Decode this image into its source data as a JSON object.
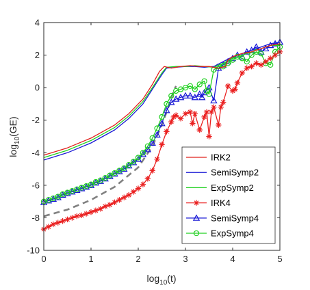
{
  "chart_data": {
    "type": "line",
    "xlabel": "log10(t)",
    "ylabel": "log10(GE)",
    "xlim": [
      0,
      5
    ],
    "ylim": [
      -10,
      4
    ],
    "xticks": [
      0,
      1,
      2,
      3,
      4,
      5
    ],
    "yticks": [
      -10,
      -8,
      -6,
      -4,
      -2,
      0,
      2,
      4
    ],
    "x_tick_labels": [
      "0",
      "1",
      "2",
      "3",
      "4",
      "5"
    ],
    "y_tick_labels": [
      "-10",
      "-8",
      "-6",
      "-4",
      "-2",
      "0",
      "2",
      "4"
    ],
    "axis_label_main": {
      "x": "log",
      "y": "log"
    },
    "axis_label_sub": {
      "x": "10",
      "y": "10"
    },
    "axis_label_arg": {
      "x": "(t)",
      "y": "(GE)"
    },
    "legend_position": "bottom-right",
    "grid": false,
    "series": [
      {
        "name": "IRK2",
        "color": "#e0201b",
        "marker": "none",
        "x": [
          0,
          0.5,
          1.0,
          1.5,
          1.8,
          2.1,
          2.3,
          2.45,
          2.55,
          2.7,
          2.9,
          3.1,
          3.3,
          3.5,
          3.7,
          3.85,
          3.9,
          4.0,
          4.2,
          4.4,
          4.6,
          4.8,
          5.0
        ],
        "y": [
          -4.15,
          -3.7,
          -3.1,
          -2.3,
          -1.6,
          -0.7,
          0.2,
          1.0,
          1.3,
          1.2,
          1.3,
          1.35,
          1.3,
          1.3,
          1.2,
          1.3,
          1.7,
          1.9,
          2.1,
          2.2,
          2.4,
          2.6,
          2.7
        ]
      },
      {
        "name": "SemiSymp2",
        "color": "#1a1ad6",
        "marker": "none",
        "x": [
          0,
          0.5,
          1.0,
          1.5,
          1.8,
          2.1,
          2.3,
          2.5,
          2.6,
          2.8,
          3.0,
          3.2,
          3.4,
          3.6,
          3.8,
          4.0,
          4.2,
          4.4,
          4.6,
          4.8,
          5.0
        ],
        "y": [
          -4.45,
          -4.0,
          -3.4,
          -2.6,
          -1.9,
          -1.0,
          -0.1,
          0.8,
          1.2,
          1.25,
          1.3,
          1.3,
          1.25,
          1.3,
          1.6,
          1.9,
          2.1,
          2.3,
          2.5,
          2.7,
          2.8
        ]
      },
      {
        "name": "ExpSymp2",
        "color": "#20d020",
        "marker": "none",
        "x": [
          0,
          0.5,
          1.0,
          1.5,
          1.8,
          2.1,
          2.3,
          2.5,
          2.6,
          2.8,
          3.0,
          3.2,
          3.4,
          3.6,
          3.8,
          4.0,
          4.2,
          4.4,
          4.6,
          4.8,
          5.0
        ],
        "y": [
          -4.3,
          -3.85,
          -3.25,
          -2.45,
          -1.75,
          -0.85,
          0.0,
          0.9,
          1.25,
          1.3,
          1.3,
          1.35,
          1.3,
          1.25,
          1.5,
          1.8,
          2.0,
          2.2,
          2.4,
          2.6,
          2.6
        ]
      },
      {
        "name": "IRK4",
        "color": "#ea2020",
        "marker": "star",
        "x": [
          0,
          0.1,
          0.2,
          0.3,
          0.4,
          0.5,
          0.6,
          0.7,
          0.8,
          0.9,
          1.0,
          1.1,
          1.2,
          1.3,
          1.4,
          1.5,
          1.6,
          1.7,
          1.8,
          1.9,
          2.0,
          2.1,
          2.2,
          2.3,
          2.4,
          2.5,
          2.6,
          2.7,
          2.75,
          2.8,
          2.9,
          3.0,
          3.1,
          3.15,
          3.2,
          3.3,
          3.4,
          3.45,
          3.5,
          3.55,
          3.6,
          3.7,
          3.75,
          3.8,
          3.9,
          4.0,
          4.05,
          4.1,
          4.2,
          4.3,
          4.4,
          4.5,
          4.6,
          4.7,
          4.8,
          4.9,
          5.0
        ],
        "y": [
          -8.7,
          -8.55,
          -8.4,
          -8.3,
          -8.2,
          -8.1,
          -8.0,
          -7.9,
          -7.85,
          -7.75,
          -7.65,
          -7.55,
          -7.45,
          -7.3,
          -7.2,
          -7.05,
          -6.9,
          -6.75,
          -6.6,
          -6.4,
          -6.2,
          -5.95,
          -5.6,
          -5.1,
          -4.4,
          -3.5,
          -2.7,
          -2.1,
          -1.8,
          -1.7,
          -1.9,
          -1.6,
          -1.5,
          -2.2,
          -1.6,
          -2.6,
          -1.8,
          -1.5,
          -3.0,
          -1.5,
          -1.2,
          -2.3,
          -1.2,
          -0.9,
          0.1,
          -0.2,
          -0.1,
          0.3,
          0.9,
          1.2,
          1.3,
          1.5,
          1.4,
          1.6,
          1.8,
          2.0,
          2.2
        ]
      },
      {
        "name": "SemiSymp4",
        "color": "#1a1ad6",
        "marker": "triangle",
        "x": [
          0,
          0.1,
          0.2,
          0.3,
          0.4,
          0.5,
          0.6,
          0.7,
          0.8,
          0.9,
          1.0,
          1.1,
          1.2,
          1.3,
          1.4,
          1.5,
          1.6,
          1.7,
          1.8,
          1.9,
          2.0,
          2.1,
          2.2,
          2.3,
          2.4,
          2.5,
          2.6,
          2.7,
          2.8,
          2.9,
          3.0,
          3.1,
          3.2,
          3.3,
          3.35,
          3.4,
          3.5,
          3.6,
          3.7,
          3.8,
          3.9,
          4.0,
          4.1,
          4.2,
          4.3,
          4.4,
          4.5,
          4.6,
          4.7,
          4.8,
          4.9,
          5.0
        ],
        "y": [
          -7.05,
          -6.95,
          -6.85,
          -6.75,
          -6.6,
          -6.5,
          -6.4,
          -6.3,
          -6.2,
          -6.1,
          -6.0,
          -5.85,
          -5.75,
          -5.6,
          -5.45,
          -5.3,
          -5.15,
          -5.0,
          -4.8,
          -4.6,
          -4.4,
          -4.1,
          -3.8,
          -3.4,
          -2.9,
          -2.2,
          -1.4,
          -0.9,
          -0.7,
          -0.6,
          -0.5,
          -0.5,
          -0.6,
          -0.4,
          -0.6,
          -0.3,
          0.0,
          -0.8,
          1.2,
          1.4,
          1.6,
          1.8,
          2.0,
          1.9,
          2.2,
          2.3,
          2.5,
          2.2,
          2.4,
          2.6,
          2.7,
          2.8
        ]
      },
      {
        "name": "ExpSymp4",
        "color": "#20d020",
        "marker": "circle",
        "x": [
          0,
          0.1,
          0.2,
          0.3,
          0.4,
          0.5,
          0.6,
          0.7,
          0.8,
          0.9,
          1.0,
          1.1,
          1.2,
          1.3,
          1.4,
          1.5,
          1.6,
          1.7,
          1.8,
          1.9,
          2.0,
          2.1,
          2.2,
          2.3,
          2.4,
          2.5,
          2.6,
          2.7,
          2.8,
          2.9,
          3.0,
          3.1,
          3.2,
          3.3,
          3.4,
          3.45,
          3.5,
          3.6,
          3.7,
          3.8,
          3.9,
          4.0,
          4.1,
          4.2,
          4.3,
          4.4,
          4.5,
          4.6,
          4.7,
          4.8,
          4.9,
          5.0
        ],
        "y": [
          -7.0,
          -6.9,
          -6.8,
          -6.7,
          -6.55,
          -6.45,
          -6.35,
          -6.25,
          -6.15,
          -6.05,
          -5.95,
          -5.8,
          -5.7,
          -5.55,
          -5.4,
          -5.25,
          -5.1,
          -4.95,
          -4.75,
          -4.55,
          -4.3,
          -4.0,
          -3.6,
          -3.1,
          -2.5,
          -1.8,
          -1.0,
          -0.5,
          -0.2,
          -0.1,
          0.0,
          0.1,
          -0.1,
          0.2,
          0.4,
          -0.2,
          -0.4,
          1.1,
          1.3,
          1.3,
          1.5,
          1.7,
          1.9,
          1.8,
          1.6,
          2.0,
          2.2,
          2.1,
          1.5,
          1.4,
          2.2,
          2.5
        ]
      },
      {
        "name": "",
        "color": "#808080",
        "marker": "none",
        "dashed": true,
        "x": [
          0,
          0.5,
          1.0,
          1.5,
          2.0,
          2.3,
          2.5,
          2.65,
          2.75,
          2.8
        ],
        "y": [
          -7.9,
          -7.5,
          -6.9,
          -6.1,
          -4.9,
          -3.6,
          -2.3,
          -1.1,
          -0.2,
          0.1
        ]
      }
    ]
  }
}
